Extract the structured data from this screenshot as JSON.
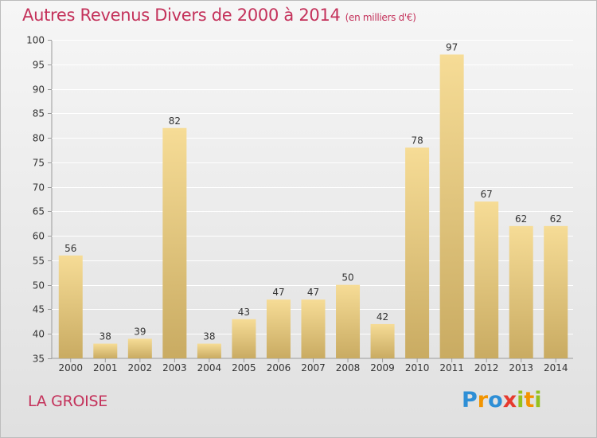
{
  "header": {
    "title": "Autres Revenus Divers de 2000 à 2014",
    "subtitle": "(en milliers d'€)"
  },
  "footer": {
    "commune": "LA GROISE",
    "logo_text": "Proxiti",
    "logo_colors": [
      "#2e8fd6",
      "#f29400",
      "#2e8fd6",
      "#e63a2e",
      "#95c11f",
      "#f29400",
      "#95c11f"
    ]
  },
  "colors": {
    "title": "#c4325b",
    "bar_light": "#f6dc96",
    "bar_dark": "#c9ab62",
    "grid": "#ffffff"
  },
  "chart_data": {
    "type": "bar",
    "categories": [
      "2000",
      "2001",
      "2002",
      "2003",
      "2004",
      "2005",
      "2006",
      "2007",
      "2008",
      "2009",
      "2010",
      "2011",
      "2012",
      "2013",
      "2014"
    ],
    "values": [
      56,
      38,
      39,
      82,
      38,
      43,
      47,
      47,
      50,
      42,
      78,
      97,
      67,
      62,
      62
    ],
    "title": "Autres Revenus Divers de 2000 à 2014",
    "subtitle": "(en milliers d'€)",
    "ylim": [
      35,
      100
    ],
    "yticks": [
      35,
      40,
      45,
      50,
      55,
      60,
      65,
      70,
      75,
      80,
      85,
      90,
      95,
      100
    ],
    "grid": true,
    "data_labels": true
  }
}
